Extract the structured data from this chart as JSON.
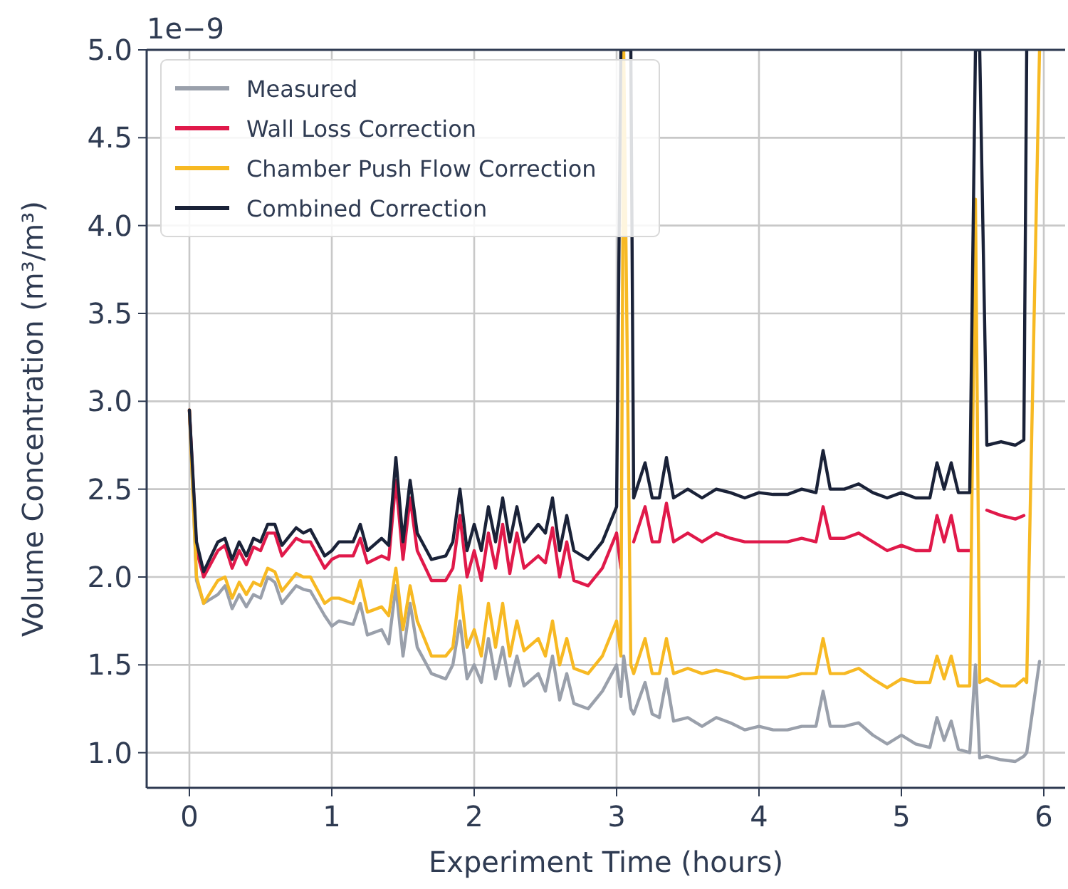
{
  "chart_data": {
    "type": "line",
    "xlabel": "Experiment Time (hours)",
    "ylabel": "Volume Concentration (m³/m³)",
    "annotations": [
      "1e−9"
    ],
    "x": [
      0,
      0.05,
      0.1,
      0.2,
      0.25,
      0.3,
      0.35,
      0.4,
      0.45,
      0.5,
      0.55,
      0.6,
      0.65,
      0.75,
      0.8,
      0.85,
      0.95,
      1.0,
      1.05,
      1.15,
      1.2,
      1.25,
      1.35,
      1.4,
      1.45,
      1.5,
      1.55,
      1.6,
      1.7,
      1.8,
      1.85,
      1.9,
      1.95,
      2.0,
      2.05,
      2.1,
      2.15,
      2.2,
      2.25,
      2.3,
      2.35,
      2.45,
      2.5,
      2.55,
      2.6,
      2.65,
      2.7,
      2.8,
      2.9,
      3.0,
      3.03,
      3.05,
      3.1,
      3.12,
      3.2,
      3.25,
      3.3,
      3.35,
      3.4,
      3.5,
      3.6,
      3.7,
      3.8,
      3.9,
      4.0,
      4.1,
      4.2,
      4.3,
      4.4,
      4.45,
      4.5,
      4.6,
      4.7,
      4.8,
      4.9,
      5.0,
      5.1,
      5.2,
      5.25,
      5.3,
      5.35,
      5.4,
      5.48,
      5.52,
      5.55,
      5.6,
      5.7,
      5.8,
      5.86,
      5.88,
      5.97
    ],
    "series": [
      {
        "name": "Measured",
        "color": "#9aa0ab",
        "values": [
          2.95,
          1.98,
          1.85,
          1.9,
          1.95,
          1.82,
          1.9,
          1.83,
          1.9,
          1.88,
          2.0,
          1.97,
          1.85,
          1.95,
          1.93,
          1.92,
          1.78,
          1.72,
          1.75,
          1.73,
          1.85,
          1.67,
          1.7,
          1.62,
          1.95,
          1.55,
          1.85,
          1.6,
          1.45,
          1.42,
          1.5,
          1.75,
          1.42,
          1.5,
          1.4,
          1.65,
          1.42,
          1.6,
          1.38,
          1.55,
          1.38,
          1.45,
          1.35,
          1.55,
          1.3,
          1.45,
          1.28,
          1.25,
          1.35,
          1.5,
          1.32,
          1.55,
          1.25,
          1.22,
          1.4,
          1.22,
          1.2,
          1.42,
          1.18,
          1.2,
          1.15,
          1.2,
          1.17,
          1.13,
          1.15,
          1.13,
          1.13,
          1.15,
          1.15,
          1.35,
          1.15,
          1.15,
          1.17,
          1.1,
          1.05,
          1.1,
          1.05,
          1.03,
          1.2,
          1.07,
          1.18,
          1.02,
          1.0,
          1.5,
          0.97,
          0.98,
          0.96,
          0.95,
          0.98,
          1.0,
          1.52
        ]
      },
      {
        "name": "Wall Loss Correction",
        "color": "#e0194a",
        "values": [
          2.95,
          2.15,
          2.0,
          2.15,
          2.18,
          2.05,
          2.15,
          2.07,
          2.17,
          2.15,
          2.25,
          2.25,
          2.12,
          2.22,
          2.2,
          2.2,
          2.05,
          2.1,
          2.12,
          2.12,
          2.22,
          2.08,
          2.12,
          2.1,
          2.55,
          2.1,
          2.45,
          2.15,
          1.98,
          1.98,
          2.05,
          2.35,
          2.0,
          2.15,
          1.98,
          2.25,
          2.05,
          2.3,
          2.02,
          2.25,
          2.05,
          2.12,
          2.08,
          2.28,
          2.0,
          2.2,
          1.98,
          1.95,
          2.05,
          2.25,
          2.05,
          null,
          null,
          2.2,
          2.4,
          2.2,
          2.2,
          2.42,
          2.2,
          2.25,
          2.2,
          2.25,
          2.22,
          2.2,
          2.2,
          2.2,
          2.2,
          2.22,
          2.2,
          2.4,
          2.22,
          2.22,
          2.25,
          2.2,
          2.15,
          2.18,
          2.15,
          2.15,
          2.35,
          2.2,
          2.35,
          2.15,
          2.15,
          null,
          null,
          2.38,
          2.35,
          2.33,
          2.35,
          null,
          null
        ]
      },
      {
        "name": "Chamber Push Flow Correction",
        "color": "#f7b923",
        "values": [
          2.95,
          2.0,
          1.85,
          1.98,
          2.0,
          1.88,
          1.97,
          1.9,
          1.97,
          1.95,
          2.05,
          2.03,
          1.92,
          2.02,
          2.0,
          2.0,
          1.85,
          1.88,
          1.88,
          1.85,
          1.98,
          1.8,
          1.83,
          1.78,
          2.05,
          1.7,
          1.95,
          1.75,
          1.55,
          1.55,
          1.6,
          1.95,
          1.6,
          1.7,
          1.55,
          1.85,
          1.6,
          1.85,
          1.55,
          1.75,
          1.58,
          1.65,
          1.55,
          1.75,
          1.5,
          1.65,
          1.48,
          1.45,
          1.55,
          1.75,
          1.55,
          5.0,
          1.5,
          1.45,
          1.65,
          1.45,
          1.45,
          1.65,
          1.45,
          1.48,
          1.45,
          1.47,
          1.45,
          1.42,
          1.43,
          1.43,
          1.43,
          1.45,
          1.45,
          1.65,
          1.45,
          1.45,
          1.48,
          1.42,
          1.37,
          1.42,
          1.4,
          1.4,
          1.55,
          1.42,
          1.55,
          1.38,
          1.38,
          4.15,
          1.4,
          1.42,
          1.38,
          1.38,
          1.42,
          1.4,
          5.0
        ]
      },
      {
        "name": "Combined Correction",
        "color": "#1a2238",
        "values": [
          2.95,
          2.2,
          2.03,
          2.2,
          2.22,
          2.1,
          2.2,
          2.12,
          2.22,
          2.2,
          2.3,
          2.3,
          2.18,
          2.28,
          2.25,
          2.27,
          2.12,
          2.15,
          2.2,
          2.2,
          2.3,
          2.15,
          2.22,
          2.18,
          2.68,
          2.2,
          2.55,
          2.25,
          2.1,
          2.12,
          2.2,
          2.5,
          2.15,
          2.3,
          2.15,
          2.4,
          2.2,
          2.45,
          2.2,
          2.4,
          2.2,
          2.3,
          2.25,
          2.45,
          2.15,
          2.35,
          2.15,
          2.1,
          2.2,
          2.4,
          5.0,
          5.0,
          5.0,
          2.45,
          2.65,
          2.45,
          2.45,
          2.68,
          2.45,
          2.5,
          2.45,
          2.5,
          2.48,
          2.45,
          2.48,
          2.47,
          2.47,
          2.5,
          2.48,
          2.72,
          2.5,
          2.5,
          2.53,
          2.48,
          2.45,
          2.48,
          2.45,
          2.45,
          2.65,
          2.5,
          2.65,
          2.48,
          2.48,
          5.0,
          5.0,
          2.75,
          2.77,
          2.75,
          2.78,
          5.0,
          null
        ]
      }
    ],
    "xlim": [
      -0.3,
      6.15
    ],
    "ylim": [
      0.8,
      5.0
    ],
    "xticks": [
      0,
      1,
      2,
      3,
      4,
      5,
      6
    ],
    "yticks": [
      {
        "value": 1,
        "label": "1.0"
      },
      {
        "value": 1.5,
        "label": "1.5"
      },
      {
        "value": 2,
        "label": "2.0"
      },
      {
        "value": 2.5,
        "label": "2.5"
      },
      {
        "value": 3,
        "label": "3.0"
      },
      {
        "value": 3.5,
        "label": "3.5"
      },
      {
        "value": 4,
        "label": "4.0"
      },
      {
        "value": 4.5,
        "label": "4.5"
      },
      {
        "value": 5,
        "label": "5.0"
      }
    ],
    "grid": true,
    "legend": "top left",
    "marker": "none",
    "line_style": "solid"
  }
}
